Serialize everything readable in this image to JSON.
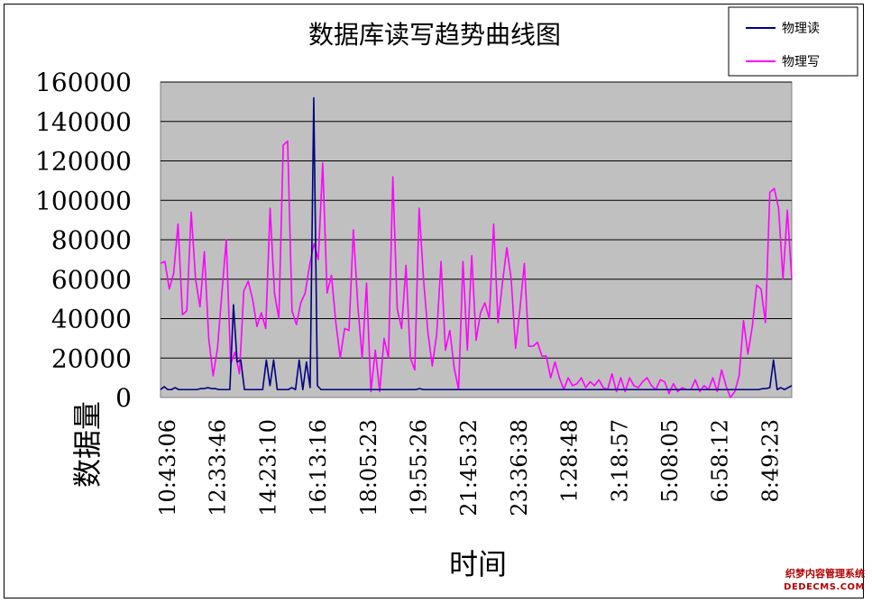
{
  "chart_data": {
    "type": "line",
    "title": "数据库读写趋势曲线图",
    "xlabel": "时间",
    "ylabel": "数据量",
    "ylim": [
      0,
      160000
    ],
    "y_ticks": [
      "160000",
      "140000",
      "120000",
      "100000",
      "80000",
      "60000",
      "40000",
      "20000",
      "0"
    ],
    "x_tick_labels": [
      "10:43:06",
      "12:33:46",
      "14:23:10",
      "16:13:16",
      "18:05:23",
      "19:55:26",
      "21:45:32",
      "23:36:38",
      "1:28:48",
      "3:18:57",
      "5:08:05",
      "6:58:12",
      "8:49:23"
    ],
    "grid": "horizontal",
    "legend_position": "top-right",
    "colors": {
      "plot_bg": "#c0c0c0",
      "read": "#000080",
      "write": "#ff00ff"
    },
    "series": [
      {
        "name": "物理读",
        "values": [
          4000,
          5500,
          4000,
          4000,
          5000,
          4000,
          4000,
          4000,
          4000,
          4000,
          4000,
          4500,
          4500,
          5000,
          4500,
          4500,
          4000,
          4000,
          4000,
          4000,
          47000,
          18000,
          19000,
          4000,
          4000,
          4000,
          4000,
          4000,
          4000,
          19000,
          6000,
          19000,
          4000,
          4000,
          4000,
          4000,
          5000,
          4000,
          19000,
          4000,
          18000,
          5000,
          152000,
          6000,
          4000,
          4000,
          4000,
          4000,
          4000,
          4000,
          4000,
          4000,
          4000,
          4000,
          4000,
          4000,
          4000,
          4000,
          4000,
          4000,
          4000,
          4000,
          4000,
          4000,
          4000,
          4000,
          4000,
          4000,
          4000,
          4000,
          4000,
          4500,
          4000,
          4000,
          4000,
          4000,
          4000,
          4000,
          4000,
          4000,
          4000,
          4000,
          4000,
          4000,
          4000,
          4000,
          4000,
          4000,
          4000,
          4000,
          4000,
          4000,
          4000,
          4000,
          4000,
          4000,
          4000,
          4000,
          4000,
          4000,
          4000,
          4000,
          4000,
          4000,
          4000,
          4000,
          4000,
          4000,
          4000,
          4000,
          4000,
          4000,
          4000,
          4000,
          4000,
          4000,
          4000,
          4000,
          4000,
          4000,
          4000,
          4000,
          4000,
          4000,
          4000,
          4000,
          4000,
          4000,
          4000,
          4000,
          4000,
          4000,
          4000,
          4000,
          4000,
          4000,
          4000,
          4000,
          4000,
          4000,
          4000,
          4000,
          4000,
          4000,
          4000,
          4000,
          4000,
          4000,
          4000,
          4000,
          4000,
          4000,
          4000,
          4000,
          4000,
          4000,
          4000,
          4000,
          4000,
          4000,
          4000,
          4000,
          4000,
          4000,
          4000,
          4500,
          4500,
          5000,
          19000,
          4000,
          5000,
          4000,
          5000,
          6000
        ]
      },
      {
        "name": "物理写",
        "values": [
          68000,
          69000,
          55000,
          63000,
          88000,
          42000,
          44000,
          94000,
          60000,
          46000,
          74000,
          30000,
          11000,
          25000,
          53000,
          80000,
          17000,
          23000,
          12000,
          54000,
          59000,
          50000,
          36000,
          43000,
          35000,
          96000,
          53000,
          40000,
          128000,
          130000,
          44000,
          37000,
          48000,
          53000,
          67000,
          78000,
          70000,
          119000,
          53000,
          62000,
          38000,
          20000,
          35000,
          34000,
          85000,
          47000,
          20000,
          58000,
          3000,
          24000,
          3000,
          30000,
          20000,
          112000,
          45000,
          35000,
          67000,
          20000,
          14000,
          96000,
          60000,
          33000,
          16000,
          32000,
          69000,
          24000,
          34000,
          15000,
          4000,
          69000,
          24000,
          72000,
          29000,
          43000,
          48000,
          40000,
          88000,
          38000,
          58000,
          76000,
          60000,
          25000,
          45000,
          68000,
          26000,
          26000,
          28000,
          21000,
          21000,
          10000,
          18000,
          10000,
          4000,
          10000,
          6000,
          7000,
          10000,
          5000,
          8000,
          6000,
          9000,
          5000,
          4000,
          12000,
          3000,
          10000,
          3000,
          10000,
          6000,
          5000,
          8000,
          10000,
          6000,
          4000,
          9000,
          8000,
          2000,
          7000,
          3000,
          5000,
          4000,
          4000,
          9000,
          3000,
          6000,
          4000,
          10000,
          3000,
          14000,
          6000,
          0,
          3000,
          11000,
          39000,
          22000,
          36000,
          57000,
          55000,
          38000,
          104000,
          106000,
          96000,
          60000,
          95000,
          60000
        ]
      }
    ]
  },
  "watermark": {
    "line1": "织梦内容管理系统",
    "line2": "DEDECMS.COM"
  }
}
